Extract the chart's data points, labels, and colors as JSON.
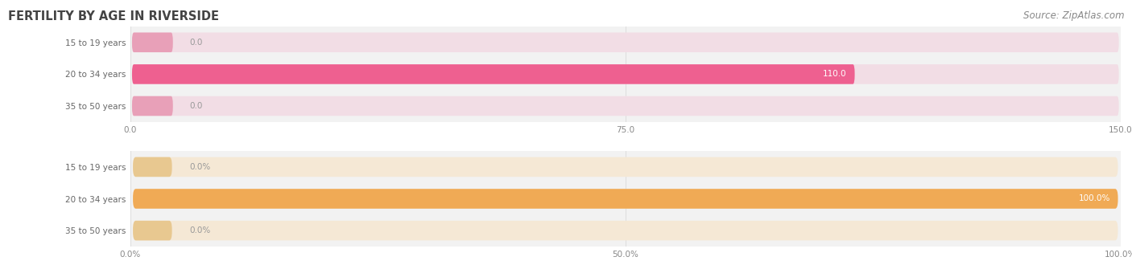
{
  "title": "FERTILITY BY AGE IN RIVERSIDE",
  "source": "Source: ZipAtlas.com",
  "top_chart": {
    "categories": [
      "15 to 19 years",
      "20 to 34 years",
      "35 to 50 years"
    ],
    "values": [
      0.0,
      110.0,
      0.0
    ],
    "xlim": [
      0,
      150
    ],
    "xticks": [
      0.0,
      75.0,
      150.0
    ],
    "xtick_labels": [
      "0.0",
      "75.0",
      "150.0"
    ],
    "bar_color": "#ee6090",
    "bar_bg_color": "#f2dde5",
    "small_bar_color": "#e8a0b8"
  },
  "bottom_chart": {
    "categories": [
      "15 to 19 years",
      "20 to 34 years",
      "35 to 50 years"
    ],
    "values": [
      0.0,
      100.0,
      0.0
    ],
    "xlim": [
      0,
      100
    ],
    "xticks": [
      0.0,
      50.0,
      100.0
    ],
    "xtick_labels": [
      "0.0%",
      "50.0%",
      "100.0%"
    ],
    "bar_color": "#f0aa55",
    "bar_bg_color": "#f5e8d5",
    "small_bar_color": "#e8c890"
  },
  "fig_bg": "#ffffff",
  "axes_bg": "#f2f2f2",
  "title_color": "#444444",
  "source_color": "#888888",
  "title_fontsize": 10.5,
  "source_fontsize": 8.5,
  "label_fontsize": 7.5,
  "tick_fontsize": 7.5,
  "category_fontsize": 7.5,
  "cat_label_color": "#666666",
  "value_label_color_in": "#ffffff",
  "value_label_color_out": "#999999",
  "grid_color": "#dddddd"
}
